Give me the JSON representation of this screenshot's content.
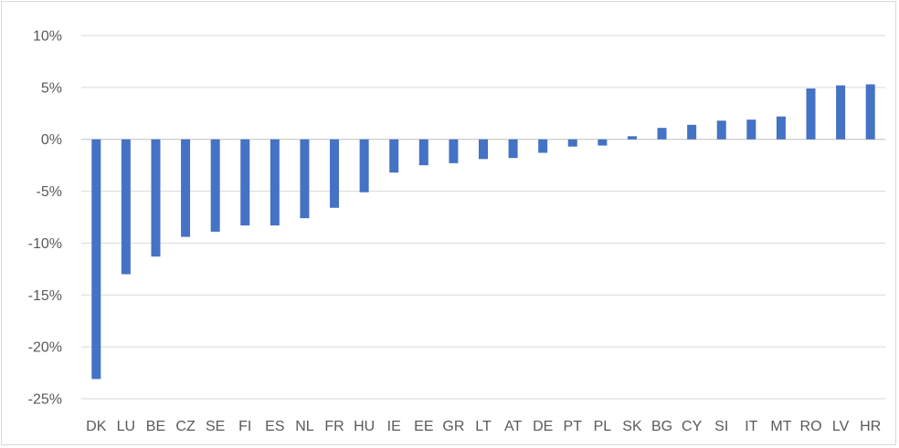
{
  "chart_data": {
    "type": "bar",
    "title": "",
    "xlabel": "",
    "ylabel": "",
    "ylim": [
      -25,
      10
    ],
    "y_ticks": [
      10,
      5,
      0,
      -5,
      -10,
      -15,
      -20,
      -25
    ],
    "y_tick_labels": [
      "10%",
      "5%",
      "0%",
      "-5%",
      "-10%",
      "-15%",
      "-20%",
      "-25%"
    ],
    "grid": true,
    "legend": "none",
    "bar_color": "#4472c4",
    "categories": [
      "DK",
      "LU",
      "BE",
      "CZ",
      "SE",
      "FI",
      "ES",
      "NL",
      "FR",
      "HU",
      "IE",
      "EE",
      "GR",
      "LT",
      "AT",
      "DE",
      "PT",
      "PL",
      "SK",
      "BG",
      "CY",
      "SI",
      "IT",
      "MT",
      "RO",
      "LV",
      "HR"
    ],
    "values": [
      -23.1,
      -13.0,
      -11.3,
      -9.4,
      -8.9,
      -8.3,
      -8.3,
      -7.6,
      -6.6,
      -5.1,
      -3.2,
      -2.5,
      -2.3,
      -1.9,
      -1.8,
      -1.3,
      -0.7,
      -0.6,
      0.3,
      1.1,
      1.4,
      1.8,
      1.9,
      2.2,
      4.9,
      5.2,
      5.3
    ]
  }
}
